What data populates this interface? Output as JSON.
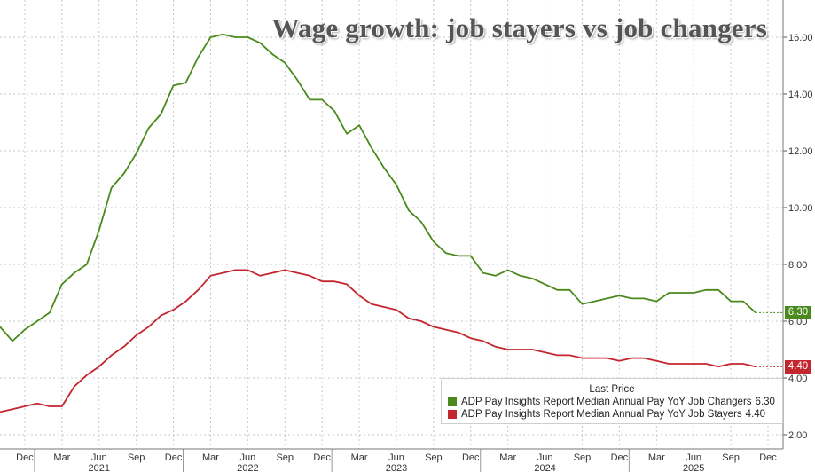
{
  "colors": {
    "changers": "#4a8a1c",
    "stayers": "#c4262e",
    "grid": "#c8c8c8",
    "axis_text": "#333333"
  },
  "chart_data": {
    "type": "line",
    "title": "Wage growth: job stayers vs job changers",
    "xlabel": "",
    "ylabel": "",
    "ylim": [
      2,
      17
    ],
    "y_ticks": [
      "2.00",
      "4.00",
      "6.00",
      "8.00",
      "10.00",
      "12.00",
      "14.00",
      "16.00"
    ],
    "grid": true,
    "legend_position": "bottom-right",
    "legend_title": "Last Price",
    "x_start": "2020-10",
    "x_end": "2025-12",
    "x_ticks": [
      {
        "month": "2020-12",
        "label": "Dec"
      },
      {
        "month": "2021-03",
        "label": "Mar"
      },
      {
        "month": "2021-06",
        "label": "Jun"
      },
      {
        "month": "2021-09",
        "label": "Sep"
      },
      {
        "month": "2021-12",
        "label": "Dec"
      },
      {
        "month": "2022-03",
        "label": "Mar"
      },
      {
        "month": "2022-06",
        "label": "Jun"
      },
      {
        "month": "2022-09",
        "label": "Sep"
      },
      {
        "month": "2022-12",
        "label": "Dec"
      },
      {
        "month": "2023-03",
        "label": "Mar"
      },
      {
        "month": "2023-06",
        "label": "Jun"
      },
      {
        "month": "2023-09",
        "label": "Sep"
      },
      {
        "month": "2023-12",
        "label": "Dec"
      },
      {
        "month": "2024-03",
        "label": "Mar"
      },
      {
        "month": "2024-06",
        "label": "Jun"
      },
      {
        "month": "2024-09",
        "label": "Sep"
      },
      {
        "month": "2024-12",
        "label": "Dec"
      },
      {
        "month": "2025-03",
        "label": "Mar"
      },
      {
        "month": "2025-06",
        "label": "Jun"
      },
      {
        "month": "2025-09",
        "label": "Sep"
      },
      {
        "month": "2025-12",
        "label": "Dec"
      }
    ],
    "year_labels": [
      {
        "month": "2021-06",
        "label": "2021"
      },
      {
        "month": "2022-06",
        "label": "2022"
      },
      {
        "month": "2023-06",
        "label": "2023"
      },
      {
        "month": "2024-06",
        "label": "2024"
      },
      {
        "month": "2025-06",
        "label": "2025"
      }
    ],
    "year_boundaries": [
      "2021-01",
      "2022-01",
      "2023-01",
      "2024-01",
      "2025-01"
    ],
    "series": [
      {
        "key": "changers",
        "name": "ADP Pay Insights Report Median Annual Pay YoY Job Changers",
        "last_value": "6.30",
        "color": "#4a8a1c",
        "points": [
          [
            "2020-10",
            5.8
          ],
          [
            "2020-11",
            5.3
          ],
          [
            "2020-12",
            5.7
          ],
          [
            "2021-01",
            6.0
          ],
          [
            "2021-02",
            6.3
          ],
          [
            "2021-03",
            7.3
          ],
          [
            "2021-04",
            7.7
          ],
          [
            "2021-05",
            8.0
          ],
          [
            "2021-06",
            9.2
          ],
          [
            "2021-07",
            10.7
          ],
          [
            "2021-08",
            11.2
          ],
          [
            "2021-09",
            11.9
          ],
          [
            "2021-10",
            12.8
          ],
          [
            "2021-11",
            13.3
          ],
          [
            "2021-12",
            14.3
          ],
          [
            "2022-01",
            14.4
          ],
          [
            "2022-02",
            15.3
          ],
          [
            "2022-03",
            16.0
          ],
          [
            "2022-04",
            16.1
          ],
          [
            "2022-05",
            16.0
          ],
          [
            "2022-06",
            16.0
          ],
          [
            "2022-07",
            15.8
          ],
          [
            "2022-08",
            15.4
          ],
          [
            "2022-09",
            15.1
          ],
          [
            "2022-10",
            14.5
          ],
          [
            "2022-11",
            13.8
          ],
          [
            "2022-12",
            13.8
          ],
          [
            "2023-01",
            13.4
          ],
          [
            "2023-02",
            12.6
          ],
          [
            "2023-03",
            12.9
          ],
          [
            "2023-04",
            12.1
          ],
          [
            "2023-05",
            11.4
          ],
          [
            "2023-06",
            10.8
          ],
          [
            "2023-07",
            9.9
          ],
          [
            "2023-08",
            9.5
          ],
          [
            "2023-09",
            8.8
          ],
          [
            "2023-10",
            8.4
          ],
          [
            "2023-11",
            8.3
          ],
          [
            "2023-12",
            8.3
          ],
          [
            "2024-01",
            7.7
          ],
          [
            "2024-02",
            7.6
          ],
          [
            "2024-03",
            7.8
          ],
          [
            "2024-04",
            7.6
          ],
          [
            "2024-05",
            7.5
          ],
          [
            "2024-06",
            7.3
          ],
          [
            "2024-07",
            7.1
          ],
          [
            "2024-08",
            7.1
          ],
          [
            "2024-09",
            6.6
          ],
          [
            "2024-10",
            6.7
          ],
          [
            "2024-11",
            6.8
          ],
          [
            "2024-12",
            6.9
          ],
          [
            "2025-01",
            6.8
          ],
          [
            "2025-02",
            6.8
          ],
          [
            "2025-03",
            6.7
          ],
          [
            "2025-04",
            7.0
          ],
          [
            "2025-05",
            7.0
          ],
          [
            "2025-06",
            7.0
          ],
          [
            "2025-07",
            7.1
          ],
          [
            "2025-08",
            7.1
          ],
          [
            "2025-09",
            6.7
          ],
          [
            "2025-10",
            6.7
          ],
          [
            "2025-11",
            6.3
          ]
        ]
      },
      {
        "key": "stayers",
        "name": "ADP Pay Insights Report Median Annual Pay YoY Job Stayers",
        "last_value": "4.40",
        "color": "#c4262e",
        "points": [
          [
            "2020-10",
            2.8
          ],
          [
            "2020-11",
            2.9
          ],
          [
            "2020-12",
            3.0
          ],
          [
            "2021-01",
            3.1
          ],
          [
            "2021-02",
            3.0
          ],
          [
            "2021-03",
            3.0
          ],
          [
            "2021-04",
            3.7
          ],
          [
            "2021-05",
            4.1
          ],
          [
            "2021-06",
            4.4
          ],
          [
            "2021-07",
            4.8
          ],
          [
            "2021-08",
            5.1
          ],
          [
            "2021-09",
            5.5
          ],
          [
            "2021-10",
            5.8
          ],
          [
            "2021-11",
            6.2
          ],
          [
            "2021-12",
            6.4
          ],
          [
            "2022-01",
            6.7
          ],
          [
            "2022-02",
            7.1
          ],
          [
            "2022-03",
            7.6
          ],
          [
            "2022-04",
            7.7
          ],
          [
            "2022-05",
            7.8
          ],
          [
            "2022-06",
            7.8
          ],
          [
            "2022-07",
            7.6
          ],
          [
            "2022-08",
            7.7
          ],
          [
            "2022-09",
            7.8
          ],
          [
            "2022-10",
            7.7
          ],
          [
            "2022-11",
            7.6
          ],
          [
            "2022-12",
            7.4
          ],
          [
            "2023-01",
            7.4
          ],
          [
            "2023-02",
            7.3
          ],
          [
            "2023-03",
            6.9
          ],
          [
            "2023-04",
            6.6
          ],
          [
            "2023-05",
            6.5
          ],
          [
            "2023-06",
            6.4
          ],
          [
            "2023-07",
            6.1
          ],
          [
            "2023-08",
            6.0
          ],
          [
            "2023-09",
            5.8
          ],
          [
            "2023-10",
            5.7
          ],
          [
            "2023-11",
            5.6
          ],
          [
            "2023-12",
            5.4
          ],
          [
            "2024-01",
            5.3
          ],
          [
            "2024-02",
            5.1
          ],
          [
            "2024-03",
            5.0
          ],
          [
            "2024-04",
            5.0
          ],
          [
            "2024-05",
            5.0
          ],
          [
            "2024-06",
            4.9
          ],
          [
            "2024-07",
            4.8
          ],
          [
            "2024-08",
            4.8
          ],
          [
            "2024-09",
            4.7
          ],
          [
            "2024-10",
            4.7
          ],
          [
            "2024-11",
            4.7
          ],
          [
            "2024-12",
            4.6
          ],
          [
            "2025-01",
            4.7
          ],
          [
            "2025-02",
            4.7
          ],
          [
            "2025-03",
            4.6
          ],
          [
            "2025-04",
            4.5
          ],
          [
            "2025-05",
            4.5
          ],
          [
            "2025-06",
            4.5
          ],
          [
            "2025-07",
            4.5
          ],
          [
            "2025-08",
            4.4
          ],
          [
            "2025-09",
            4.5
          ],
          [
            "2025-10",
            4.5
          ],
          [
            "2025-11",
            4.4
          ]
        ]
      }
    ]
  }
}
